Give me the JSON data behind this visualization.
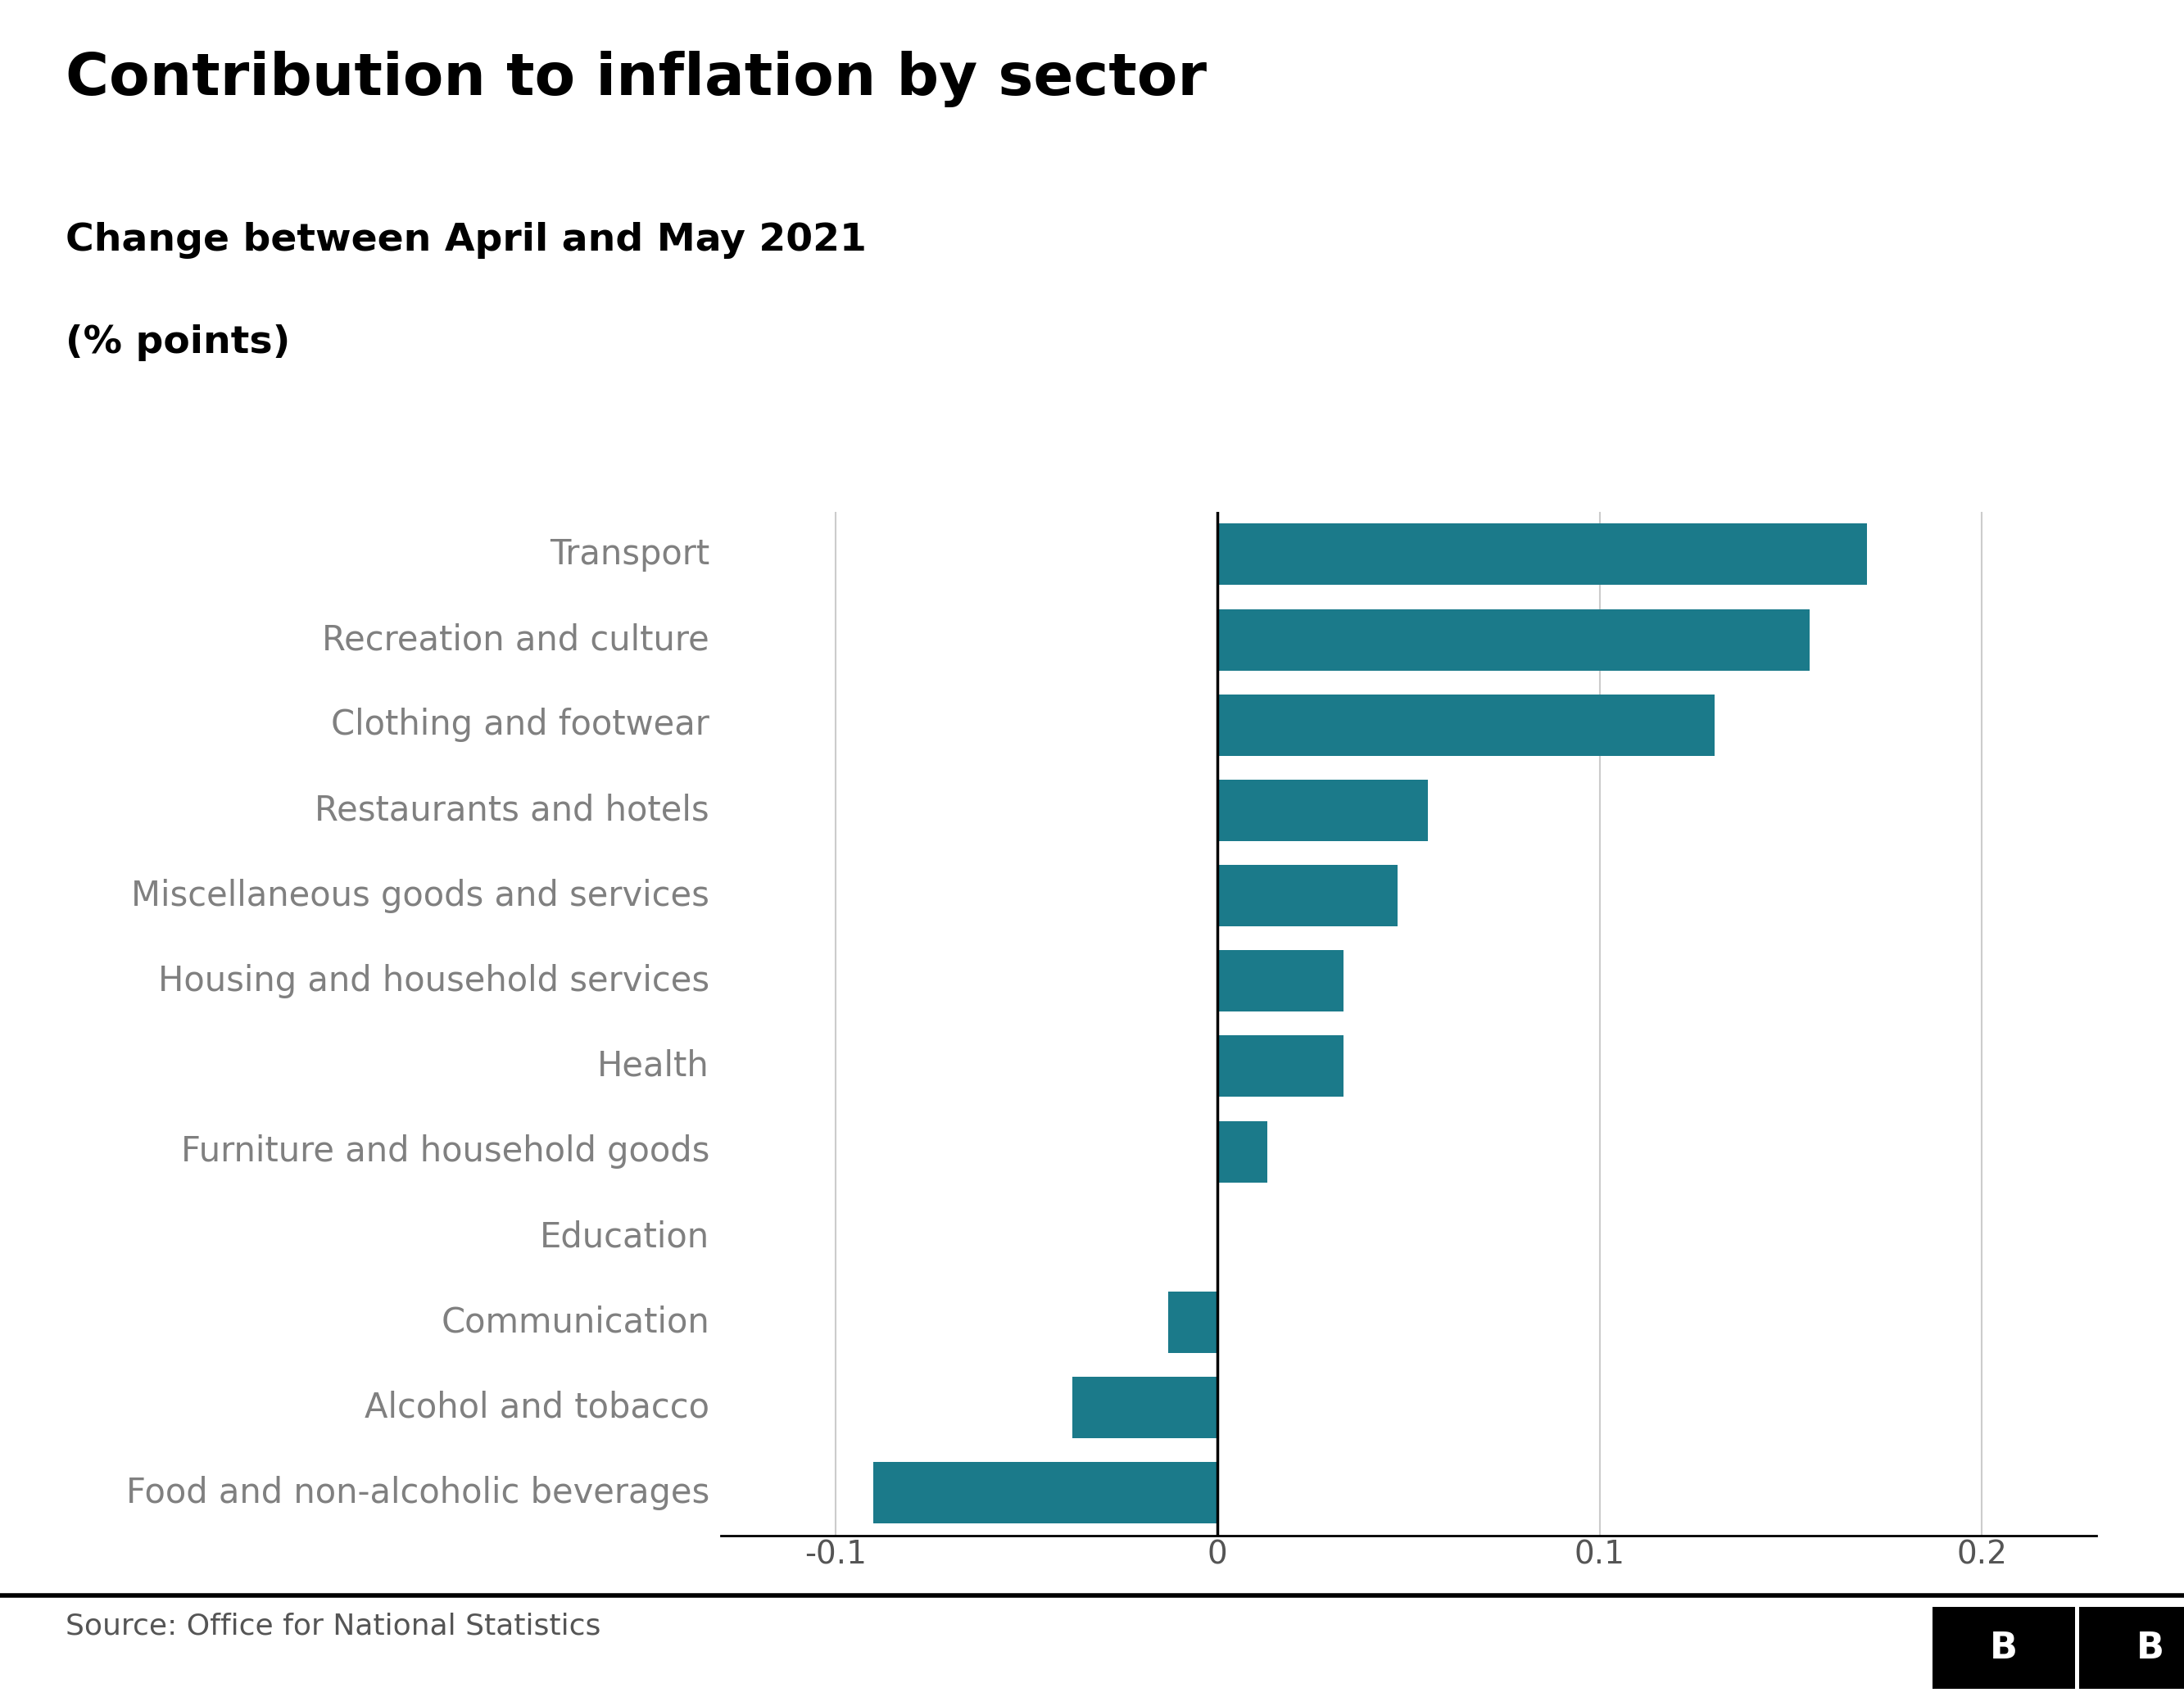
{
  "title": "Contribution to inflation by sector",
  "subtitle_line1": "Change between April and May 2021",
  "subtitle_line2": "(% points)",
  "source": "Source: Office for National Statistics",
  "categories": [
    "Transport",
    "Recreation and culture",
    "Clothing and footwear",
    "Restaurants and hotels",
    "Miscellaneous goods and services",
    "Housing and household services",
    "Health",
    "Furniture and household goods",
    "Education",
    "Communication",
    "Alcohol and tobacco",
    "Food and non-alcoholic beverages"
  ],
  "values": [
    0.17,
    0.155,
    0.13,
    0.055,
    0.047,
    0.033,
    0.033,
    0.013,
    0.0,
    -0.013,
    -0.038,
    -0.09
  ],
  "bar_color": "#1b7a8a",
  "label_color": "#808080",
  "title_color": "#000000",
  "subtitle_color": "#000000",
  "bg_color": "#ffffff",
  "xlim": [
    -0.13,
    0.23
  ],
  "xticks": [
    -0.1,
    0.0,
    0.1,
    0.2
  ],
  "xtick_labels": [
    "-0.1",
    "0",
    "0.1",
    "0.2"
  ],
  "grid_color": "#cccccc",
  "axis_color": "#000000",
  "title_fontsize": 52,
  "subtitle_fontsize": 34,
  "label_fontsize": 30,
  "tick_fontsize": 28,
  "source_fontsize": 26,
  "bbc_fontsize": 32
}
